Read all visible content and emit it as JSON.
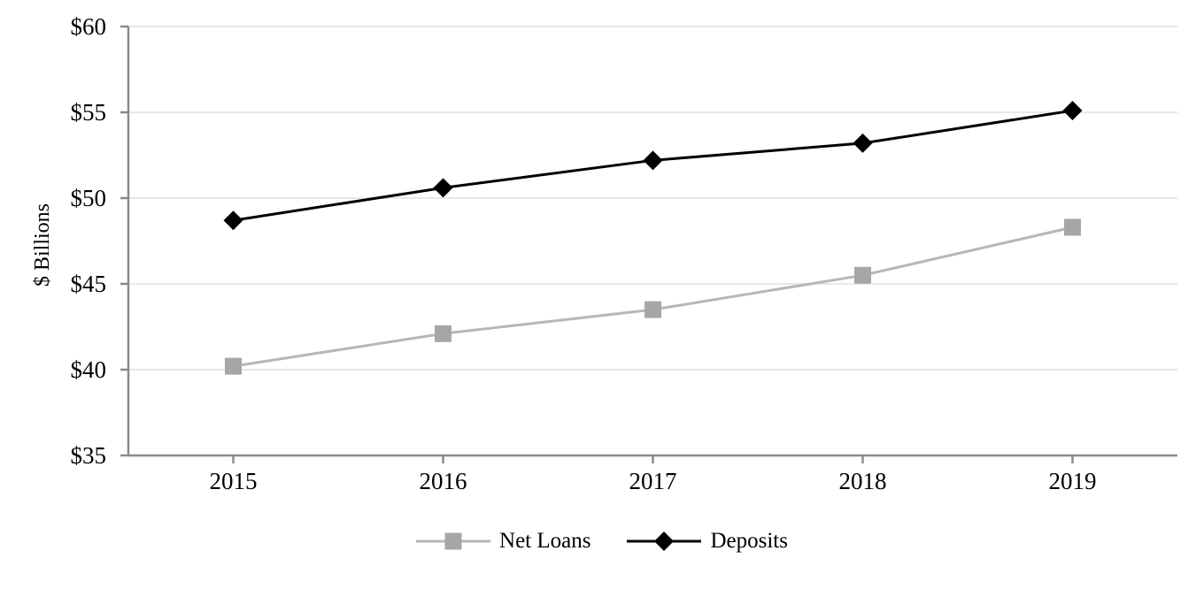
{
  "chart_data": {
    "type": "line",
    "title": "",
    "xlabel": "",
    "ylabel": "$ Billions",
    "categories": [
      "2015",
      "2016",
      "2017",
      "2018",
      "2019"
    ],
    "series": [
      {
        "name": "Net Loans",
        "values": [
          40.2,
          42.1,
          43.5,
          45.5,
          48.3
        ],
        "line_color": "#b7b7b7",
        "marker_color": "#a6a6a6",
        "marker": "square"
      },
      {
        "name": "Deposits",
        "values": [
          48.7,
          50.6,
          52.2,
          53.2,
          55.1
        ],
        "line_color": "#000000",
        "marker_color": "#000000",
        "marker": "diamond"
      }
    ],
    "y_ticks": [
      "$35",
      "$40",
      "$45",
      "$50",
      "$55",
      "$60"
    ],
    "y_tick_values": [
      35,
      40,
      45,
      50,
      55,
      60
    ],
    "ylim": [
      35,
      60
    ],
    "grid": "horizontal",
    "legend_position": "bottom"
  },
  "colors": {
    "axis": "#8a8a8a",
    "gridline": "#e8e8e8",
    "text": "#000000",
    "background": "#ffffff"
  }
}
